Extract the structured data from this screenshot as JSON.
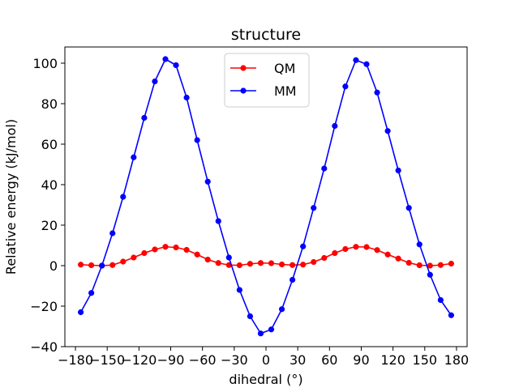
{
  "chart_data": {
    "type": "line",
    "title": "structure",
    "xlabel": "dihedral (°)",
    "ylabel": "Relative energy (kJ/mol)",
    "xlim": [
      -190,
      190
    ],
    "ylim": [
      -40,
      108
    ],
    "xticks": [
      -180,
      -150,
      -120,
      -90,
      -60,
      -30,
      0,
      30,
      60,
      90,
      120,
      150,
      180
    ],
    "xtick_labels": [
      "−180",
      "−150",
      "−120",
      "−90",
      "−60",
      "−30",
      "0",
      "30",
      "60",
      "90",
      "120",
      "150",
      "180"
    ],
    "yticks": [
      -40,
      -20,
      0,
      20,
      40,
      60,
      80,
      100
    ],
    "ytick_labels": [
      "−40",
      "−20",
      "0",
      "20",
      "40",
      "60",
      "80",
      "100"
    ],
    "grid": false,
    "legend_position": "top-center",
    "x": [
      -175,
      -165,
      -155,
      -145,
      -135,
      -125,
      -115,
      -105,
      -95,
      -85,
      -75,
      -65,
      -55,
      -45,
      -35,
      -25,
      -15,
      -5,
      5,
      15,
      25,
      35,
      45,
      55,
      65,
      75,
      85,
      95,
      105,
      115,
      125,
      135,
      145,
      155,
      165,
      175
    ],
    "series": [
      {
        "name": "QM",
        "color": "#ff0000",
        "values": [
          0.5,
          0.2,
          0.0,
          0.3,
          2.0,
          4.0,
          6.2,
          8.0,
          9.3,
          9.0,
          7.8,
          5.5,
          3.0,
          1.3,
          0.3,
          0.2,
          0.9,
          1.3,
          1.2,
          0.6,
          0.3,
          0.5,
          1.8,
          3.8,
          6.2,
          8.2,
          9.3,
          9.2,
          7.7,
          5.5,
          3.5,
          1.4,
          0.2,
          0.0,
          0.3,
          1.0
        ]
      },
      {
        "name": "MM",
        "color": "#0000ff",
        "values": [
          -23.0,
          -13.5,
          0.0,
          16.0,
          34.0,
          53.5,
          73.0,
          91.0,
          102.0,
          99.0,
          83.0,
          62.0,
          41.5,
          22.0,
          4.0,
          -12.0,
          -25.0,
          -33.5,
          -31.5,
          -21.5,
          -7.0,
          9.5,
          28.5,
          48.0,
          69.0,
          88.5,
          101.5,
          99.5,
          85.5,
          66.5,
          47.0,
          28.5,
          10.5,
          -4.5,
          -17.0,
          -24.5
        ]
      }
    ]
  }
}
